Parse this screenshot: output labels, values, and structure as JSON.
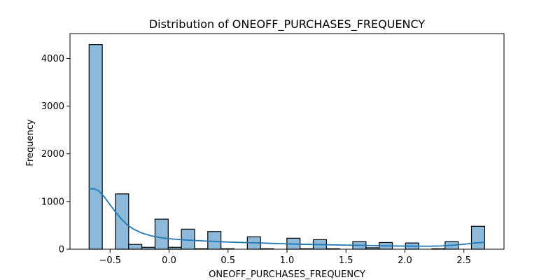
{
  "chart_data": {
    "type": "bar",
    "title": "Distribution of ONEOFF_PURCHASES_FREQUENCY",
    "xlabel": "ONEOFF_PURCHASES_FREQUENCY",
    "ylabel": "Frequency",
    "xlim": [
      -0.84,
      2.84
    ],
    "ylim": [
      0,
      4520
    ],
    "xticks": [
      -0.5,
      0.0,
      0.5,
      1.0,
      1.5,
      2.0,
      2.5
    ],
    "xtick_labels": [
      "−0.5",
      "0.0",
      "0.5",
      "1.0",
      "1.5",
      "2.0",
      "2.5"
    ],
    "yticks": [
      0,
      1000,
      2000,
      3000,
      4000
    ],
    "ytick_labels": [
      "0",
      "1000",
      "2000",
      "3000",
      "4000"
    ],
    "grid": false,
    "bin_start": -0.678,
    "bin_width": 0.1118,
    "values": [
      4290,
      0,
      1160,
      100,
      40,
      630,
      40,
      420,
      10,
      370,
      10,
      0,
      260,
      10,
      0,
      230,
      10,
      200,
      10,
      0,
      160,
      30,
      140,
      0,
      130,
      0,
      10,
      160,
      0,
      480
    ],
    "kde": {
      "x": [
        -0.68,
        -0.64,
        -0.6,
        -0.55,
        -0.5,
        -0.45,
        -0.4,
        -0.35,
        -0.3,
        -0.25,
        -0.2,
        -0.15,
        -0.1,
        -0.05,
        0.0,
        0.1,
        0.2,
        0.3,
        0.4,
        0.5,
        0.6,
        0.8,
        1.0,
        1.2,
        1.4,
        1.6,
        1.8,
        2.0,
        2.2,
        2.3,
        2.4,
        2.5,
        2.55,
        2.6,
        2.68
      ],
      "y": [
        1260,
        1270,
        1230,
        1100,
        930,
        770,
        620,
        500,
        420,
        360,
        315,
        280,
        255,
        235,
        220,
        200,
        185,
        172,
        162,
        150,
        142,
        128,
        112,
        100,
        90,
        82,
        72,
        65,
        62,
        68,
        82,
        105,
        118,
        132,
        145
      ]
    },
    "bar_fill": "#8db9db",
    "bar_edge": "#000000",
    "kde_color": "#1f77b4"
  }
}
